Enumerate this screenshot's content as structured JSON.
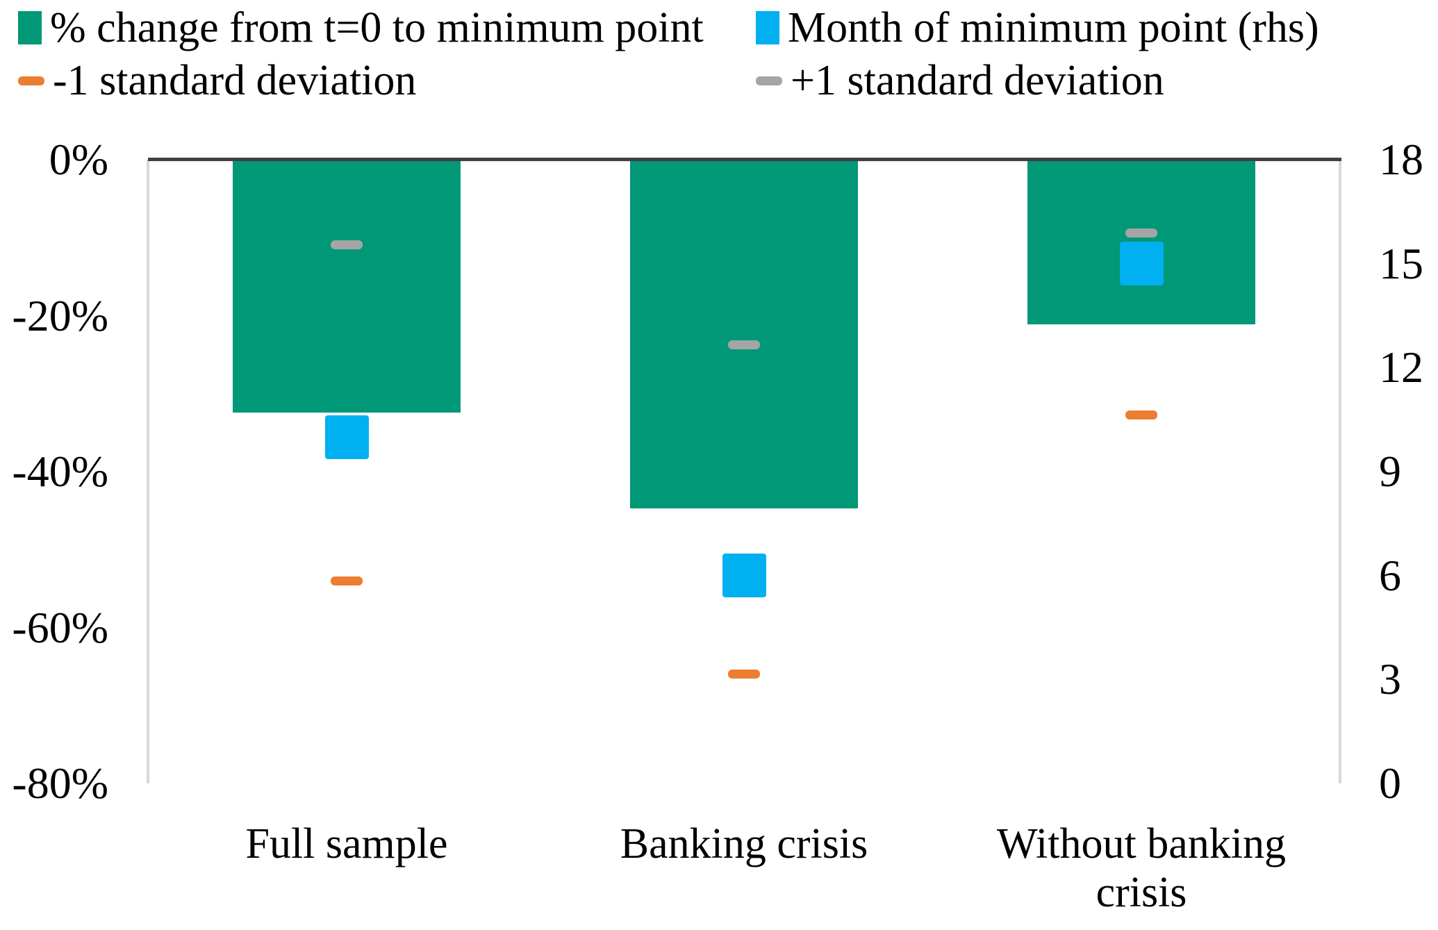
{
  "colors": {
    "bar_green": "#009877",
    "month_blue": "#00B0F0",
    "minus_sd_orange": "#ED7D31",
    "plus_sd_gray": "#A5A5A5",
    "axis_top_line": "#404040",
    "axis_side_line": "#D9D9D9"
  },
  "legend": {
    "items": [
      {
        "label": "% change from t=0 to minimum point",
        "marker": "square",
        "color": "#009877"
      },
      {
        "label": "Month of minimum point (rhs)",
        "marker": "square",
        "color": "#00B0F0"
      },
      {
        "label": "-1 standard deviation",
        "marker": "dash",
        "color": "#ED7D31"
      },
      {
        "label": "+1 standard deviation",
        "marker": "dash",
        "color": "#A5A5A5"
      }
    ]
  },
  "chart_data": {
    "type": "bar",
    "title": "",
    "categories": [
      "Full sample",
      "Banking crisis",
      "Without banking crisis"
    ],
    "series": [
      {
        "name": "% change from t=0 to minimum point",
        "type": "bar",
        "axis": "left",
        "color": "#009877",
        "values": [
          -32.4,
          -44.7,
          -21.1
        ]
      },
      {
        "name": "Month of minimum point (rhs)",
        "type": "square-point",
        "axis": "right",
        "color": "#00B0F0",
        "values": [
          10,
          6,
          15
        ]
      },
      {
        "name": "-1 standard deviation",
        "type": "dash",
        "axis": "left",
        "color": "#ED7D31",
        "values": [
          -54.0,
          -66.0,
          -32.7
        ]
      },
      {
        "name": "+1 standard deviation",
        "type": "dash",
        "axis": "left",
        "color": "#A5A5A5",
        "values": [
          -10.9,
          -23.7,
          -9.4
        ]
      }
    ],
    "left_axis": {
      "tick_labels": [
        "0%",
        "-20%",
        "-40%",
        "-60%",
        "-80%"
      ],
      "tick_values": [
        0,
        -20,
        -40,
        -60,
        -80
      ],
      "min": -80,
      "max": 0
    },
    "right_axis": {
      "tick_labels": [
        "18",
        "15",
        "12",
        "9",
        "6",
        "3",
        "0"
      ],
      "tick_values": [
        18,
        15,
        12,
        9,
        6,
        3,
        0
      ],
      "min": 0,
      "max": 18
    },
    "grid": false,
    "legend_position": "top"
  }
}
